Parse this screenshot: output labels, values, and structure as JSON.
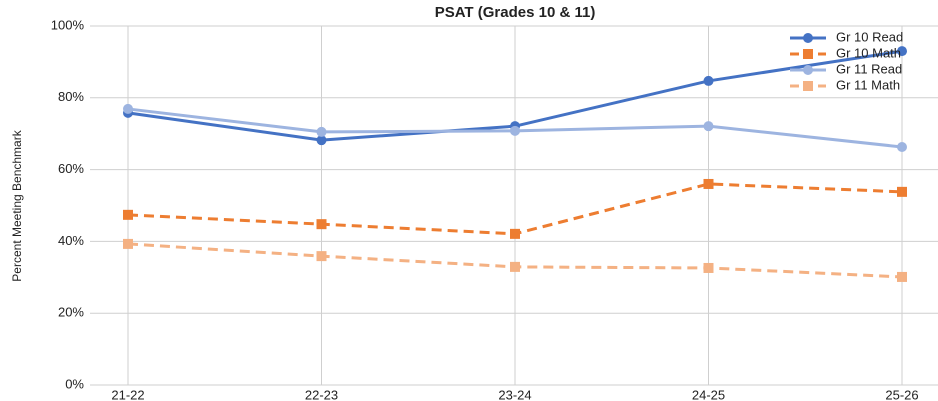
{
  "chart_data": {
    "type": "line",
    "title": "PSAT (Grades 10 & 11)",
    "y_label": "Percent Meeting Benchmark",
    "categories": [
      "21-22",
      "22-23",
      "23-24",
      "24-25",
      "25-26"
    ],
    "series": [
      {
        "name": "Gr 10 Read",
        "color": "#4472c4",
        "dashed": false,
        "marker": "circle",
        "values": [
          75.8,
          68.2,
          72.1,
          84.7,
          93.0
        ]
      },
      {
        "name": "Gr 10 Math",
        "color": "#ed7d31",
        "dashed": true,
        "marker": "square",
        "values": [
          47.4,
          44.8,
          42.1,
          56.0,
          53.8
        ]
      },
      {
        "name": "Gr 11 Read",
        "color": "#9db4e0",
        "dashed": false,
        "marker": "circle",
        "values": [
          76.9,
          70.5,
          70.8,
          72.1,
          66.3
        ]
      },
      {
        "name": "Gr 11 Math",
        "color": "#f4b183",
        "dashed": true,
        "marker": "square",
        "values": [
          39.3,
          35.9,
          32.9,
          32.6,
          30.1
        ]
      }
    ],
    "ylim": [
      0,
      100
    ],
    "yticks": [
      {
        "value": 0,
        "label": "0%"
      },
      {
        "value": 20,
        "label": "20%"
      },
      {
        "value": 40,
        "label": "40%"
      },
      {
        "value": 60,
        "label": "60%"
      },
      {
        "value": 80,
        "label": "80%"
      },
      {
        "value": 100,
        "label": "100%"
      }
    ],
    "grid": true,
    "legend": "top-right"
  }
}
